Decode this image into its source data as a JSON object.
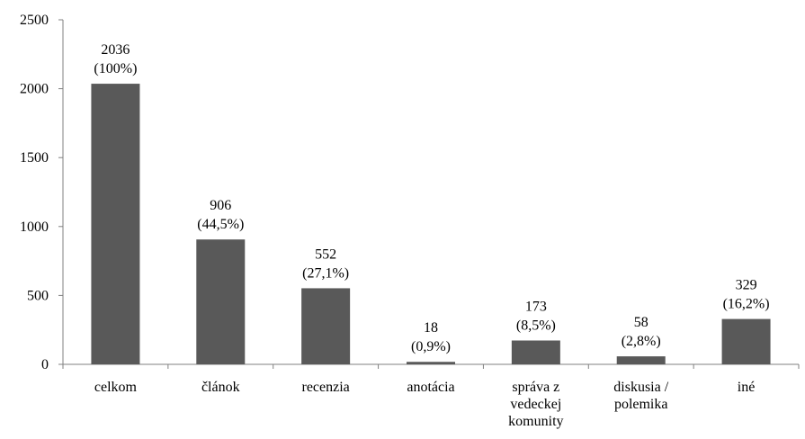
{
  "chart_data": {
    "type": "bar",
    "title": "",
    "xlabel": "",
    "ylabel": "",
    "ylim": [
      0,
      2500
    ],
    "yticks": [
      "0",
      "500",
      "1000",
      "1500",
      "2000",
      "2500"
    ],
    "grid": false,
    "legend": "none",
    "bar_color": "#595959",
    "categories": [
      [
        "celkom"
      ],
      [
        "článok"
      ],
      [
        "recenzia"
      ],
      [
        "anotácia"
      ],
      [
        "správa z",
        "vedeckej",
        "komunity"
      ],
      [
        "diskusia /",
        "polemika"
      ],
      [
        "iné"
      ]
    ],
    "values": [
      2036,
      906,
      552,
      18,
      173,
      58,
      329
    ],
    "data_labels": [
      [
        "2036",
        "(100%)"
      ],
      [
        "906",
        "(44,5%)"
      ],
      [
        "552",
        "(27,1%)"
      ],
      [
        "18",
        "(0,9%)"
      ],
      [
        "173",
        "(8,5%)"
      ],
      [
        "58",
        "(2,8%)"
      ],
      [
        "329",
        "(16,2%)"
      ]
    ]
  }
}
